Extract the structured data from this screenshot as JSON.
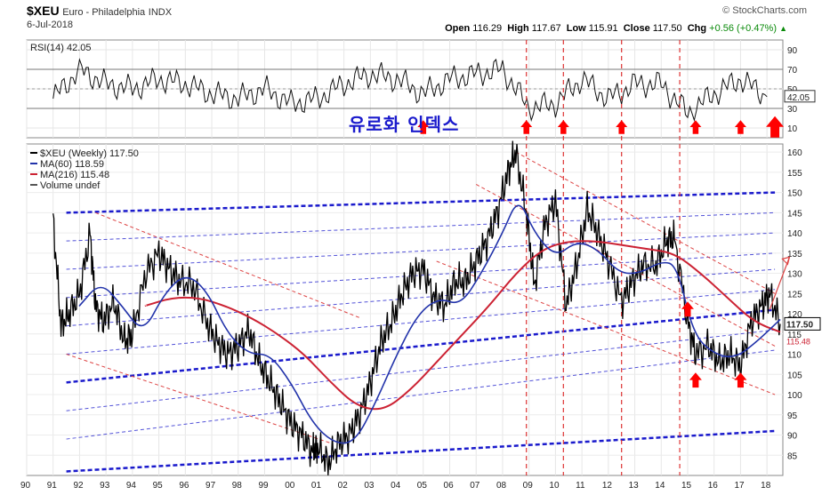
{
  "header": {
    "symbol": "$XEU",
    "description": "Euro - Philadelphia",
    "exchange": "INDX",
    "date": "6-Jul-2018",
    "brand": "© StockCharts.com",
    "open_label": "Open",
    "open": "116.29",
    "high_label": "High",
    "high": "117.67",
    "low_label": "Low",
    "low": "115.91",
    "close_label": "Close",
    "close": "117.50",
    "chg_label": "Chg",
    "chg": "+0.56 (+0.47%)"
  },
  "annotation": {
    "korean_label": "유로화 인덱스"
  },
  "colors": {
    "price": "#000000",
    "ma60": "#2233aa",
    "ma216": "#cc2233",
    "channel_blue": "#1a1acc",
    "channel_red": "#dd4444",
    "arrow_red": "#ff0000",
    "vline_red": "#dd3333"
  },
  "chart_data": [
    {
      "type": "line",
      "title": "RSI(14) 42.05",
      "name": "RSI(14)",
      "ylim": [
        0,
        100
      ],
      "yticks": [
        10,
        30,
        50,
        70,
        90
      ],
      "reference_lines": [
        30,
        70
      ],
      "last_value_label": "42.05",
      "x_years": [
        1991,
        1992,
        1993,
        1994,
        1995,
        1996,
        1997,
        1998,
        1999,
        2000,
        2001,
        2002,
        2003,
        2004,
        2005,
        2006,
        2007,
        2008,
        2009,
        2010,
        2011,
        2012,
        2013,
        2014,
        2015,
        2016,
        2017,
        2018
      ],
      "values": [
        40,
        70,
        55,
        50,
        60,
        55,
        45,
        40,
        50,
        35,
        40,
        55,
        65,
        60,
        45,
        60,
        65,
        70,
        30,
        35,
        60,
        40,
        55,
        55,
        25,
        45,
        60,
        42
      ]
    },
    {
      "type": "line",
      "legend": [
        {
          "name": "$XEU (Weekly) 117.50",
          "color": "#000000"
        },
        {
          "name": "MA(60) 118.59",
          "color": "#2233aa"
        },
        {
          "name": "MA(216) 115.48",
          "color": "#cc2233"
        },
        {
          "name": "Volume undef",
          "color": "#555555"
        }
      ],
      "ylim": [
        80,
        162
      ],
      "yticks": [
        85,
        90,
        95,
        100,
        105,
        110,
        115,
        120,
        125,
        130,
        135,
        140,
        145,
        150,
        155,
        160
      ],
      "xlim": [
        1990,
        2018.6
      ],
      "xtick_labels": [
        "90",
        "91",
        "92",
        "93",
        "94",
        "95",
        "96",
        "97",
        "98",
        "99",
        "00",
        "01",
        "02",
        "03",
        "04",
        "05",
        "06",
        "07",
        "08",
        "09",
        "10",
        "11",
        "12",
        "13",
        "14",
        "15",
        "16",
        "17",
        "18"
      ],
      "xtick_years": [
        1990,
        1991,
        1992,
        1993,
        1994,
        1995,
        1996,
        1997,
        1998,
        1999,
        2000,
        2001,
        2002,
        2003,
        2004,
        2005,
        2006,
        2007,
        2008,
        2009,
        2010,
        2011,
        2012,
        2013,
        2014,
        2015,
        2016,
        2017,
        2018
      ],
      "series": [
        {
          "name": "$XEU (Weekly) 117.50",
          "x": [
            1991.0,
            1991.3,
            1991.6,
            1992.0,
            1992.4,
            1992.6,
            1992.9,
            1993.3,
            1993.7,
            1994.0,
            1994.5,
            1995.0,
            1995.4,
            1995.8,
            1996.3,
            1996.8,
            1997.2,
            1997.6,
            1998.0,
            1998.4,
            1998.8,
            1999.2,
            1999.6,
            2000.0,
            2000.4,
            2000.8,
            2001.0,
            2001.4,
            2001.8,
            2002.2,
            2002.6,
            2003.0,
            2003.4,
            2003.8,
            2004.2,
            2004.6,
            2005.0,
            2005.4,
            2005.8,
            2006.2,
            2006.6,
            2007.0,
            2007.4,
            2007.8,
            2008.2,
            2008.5,
            2008.9,
            2009.2,
            2009.6,
            2010.0,
            2010.4,
            2010.8,
            2011.2,
            2011.6,
            2012.0,
            2012.5,
            2012.9,
            2013.3,
            2013.8,
            2014.2,
            2014.5,
            2015.0,
            2015.3,
            2015.8,
            2016.2,
            2016.6,
            2017.0,
            2017.4,
            2017.8,
            2018.1,
            2018.5
          ],
          "values": [
            143,
            117,
            120,
            125,
            140,
            122,
            118,
            123,
            113,
            115,
            130,
            135,
            131,
            128,
            127,
            118,
            113,
            110,
            112,
            116,
            108,
            103,
            98,
            93,
            90,
            86,
            87,
            83,
            88,
            90,
            95,
            103,
            113,
            118,
            125,
            130,
            131,
            124,
            122,
            128,
            128,
            133,
            138,
            145,
            155,
            160,
            145,
            127,
            142,
            148,
            122,
            132,
            146,
            140,
            133,
            123,
            128,
            132,
            132,
            138,
            139,
            118,
            110,
            112,
            108,
            110,
            107,
            118,
            122,
            125,
            117.5
          ]
        },
        {
          "name": "MA(60) 118.59",
          "x": [
            1992.0,
            1992.8,
            1993.6,
            1994.4,
            1995.2,
            1996.0,
            1996.8,
            1997.6,
            1998.4,
            1999.2,
            2000.0,
            2000.8,
            2001.6,
            2002.4,
            2003.2,
            2004.0,
            2004.8,
            2005.6,
            2006.4,
            2007.2,
            2008.0,
            2008.6,
            2009.2,
            2010.0,
            2010.8,
            2011.6,
            2012.4,
            2013.2,
            2014.0,
            2014.6,
            2015.2,
            2016.0,
            2016.8,
            2017.6,
            2018.5
          ],
          "values": [
            122,
            128,
            122,
            115,
            125,
            130,
            126,
            115,
            110,
            110,
            103,
            93,
            88,
            88,
            98,
            110,
            120,
            124,
            122,
            130,
            140,
            149,
            140,
            134,
            138,
            136,
            130,
            130,
            133,
            132,
            115,
            110,
            109,
            113,
            118.59
          ]
        },
        {
          "name": "MA(216) 115.48",
          "x": [
            1994.5,
            1995.5,
            1996.5,
            1997.5,
            1998.5,
            1999.5,
            2000.5,
            2001.5,
            2002.5,
            2003.5,
            2004.5,
            2005.5,
            2006.5,
            2007.5,
            2008.5,
            2009.5,
            2010.5,
            2011.5,
            2012.5,
            2013.5,
            2014.5,
            2015.5,
            2016.5,
            2017.5,
            2018.5
          ],
          "values": [
            122,
            124,
            124,
            122,
            119,
            115,
            110,
            103,
            97,
            96,
            101,
            108,
            115,
            122,
            130,
            136,
            138,
            138,
            137,
            136,
            135,
            130,
            124,
            118,
            115.48
          ]
        }
      ],
      "channels_blue": [
        {
          "x": [
            1991.5,
            2018.3
          ],
          "y": [
            81,
            91
          ]
        },
        {
          "x": [
            1991.5,
            2018.3
          ],
          "y": [
            89,
            111
          ],
          "style": "dash"
        },
        {
          "x": [
            1991.5,
            2018.3
          ],
          "y": [
            96,
            116
          ],
          "style": "dash"
        },
        {
          "x": [
            1991.5,
            2018.3
          ],
          "y": [
            103,
            121
          ],
          "style": "bold-dash"
        },
        {
          "x": [
            1991.5,
            2018.3
          ],
          "y": [
            110,
            126
          ],
          "style": "dash"
        },
        {
          "x": [
            1991.5,
            2018.3
          ],
          "y": [
            117,
            131
          ],
          "style": "dash"
        },
        {
          "x": [
            1991.5,
            2018.3
          ],
          "y": [
            124,
            135
          ],
          "style": "dash"
        },
        {
          "x": [
            1991.5,
            2018.3
          ],
          "y": [
            131,
            140
          ],
          "style": "dash"
        },
        {
          "x": [
            1991.5,
            2018.3
          ],
          "y": [
            138,
            145
          ],
          "style": "dash"
        },
        {
          "x": [
            1991.5,
            2018.3
          ],
          "y": [
            145,
            150
          ],
          "style": "bold-dash"
        }
      ],
      "channels_red": [
        {
          "x": [
            1991.5,
            2001.5
          ],
          "y": [
            110,
            88
          ]
        },
        {
          "x": [
            1992.6,
            2002.6
          ],
          "y": [
            145,
            119
          ]
        },
        {
          "x": [
            2005.5,
            2018.3
          ],
          "y": [
            133,
            100
          ]
        },
        {
          "x": [
            2008.5,
            2018.3
          ],
          "y": [
            160,
            125
          ]
        },
        {
          "x": [
            2007.0,
            2018.3
          ],
          "y": [
            152,
            112
          ]
        }
      ],
      "vertical_lines_years": [
        2008.9,
        2010.3,
        2012.5,
        2014.7
      ],
      "price_up_arrows_years": [
        2015.3,
        2017.0
      ],
      "rsi_up_arrows_years": [
        2005.0,
        2008.9,
        2010.3,
        2012.5,
        2015.3,
        2017.0,
        2018.3
      ],
      "last_price_label": "117.50",
      "ma216_label": "115.48"
    }
  ]
}
